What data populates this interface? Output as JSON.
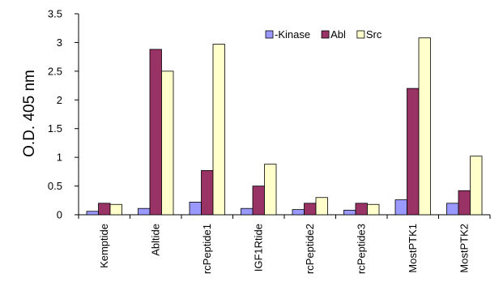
{
  "chart_data": {
    "type": "bar",
    "title": "",
    "xlabel": "",
    "ylabel": "O.D. 405 nm",
    "ylim": [
      0,
      3.5
    ],
    "yticks": [
      0,
      0.5,
      1,
      1.5,
      2,
      2.5,
      3,
      3.5
    ],
    "ytick_labels": [
      "0",
      "0.5",
      "1",
      "1.5",
      "2",
      "2.5",
      "3",
      "3.5"
    ],
    "grid": false,
    "legend_position": "top-right",
    "categories": [
      "Kemptide",
      "Abltide",
      "rcPeptide1",
      "IGF1Rtide",
      "rcPeptide2",
      "rcPeptide3",
      "MostPTK1",
      "MostPTK2"
    ],
    "series": [
      {
        "name": "-Kinase",
        "color": "#9999ff",
        "values": [
          0.06,
          0.11,
          0.22,
          0.11,
          0.09,
          0.08,
          0.26,
          0.2
        ]
      },
      {
        "name": "Abl",
        "color": "#993366",
        "values": [
          0.2,
          2.88,
          0.77,
          0.5,
          0.2,
          0.2,
          2.2,
          0.42
        ]
      },
      {
        "name": "Src",
        "color": "#ffffcc",
        "values": [
          0.18,
          2.5,
          2.97,
          0.88,
          0.3,
          0.18,
          3.08,
          1.02
        ]
      }
    ]
  }
}
